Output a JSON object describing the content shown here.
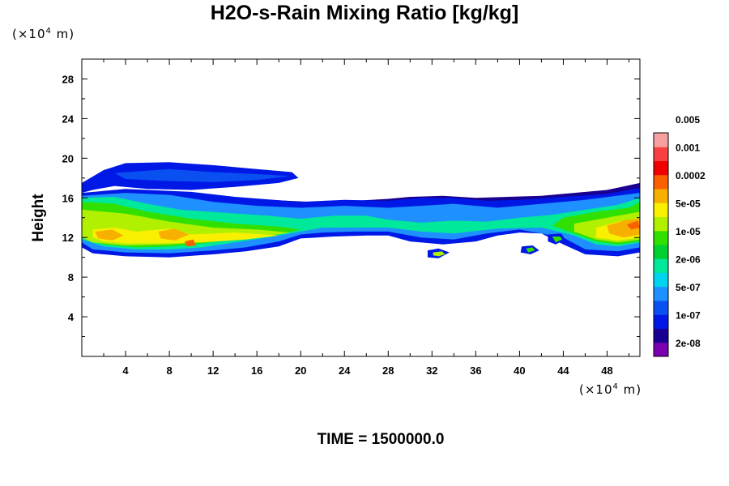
{
  "chart_data": {
    "type": "heatmap",
    "title": "H2O-s-Rain Mixing Ratio [kg/kg]",
    "ylabel": "Height",
    "x_unit_prefix": "(×10",
    "x_unit_exp": "4",
    "x_unit_suffix": " m)",
    "y_unit_prefix": "(×10",
    "y_unit_exp": "4",
    "y_unit_suffix": " m)",
    "xlim": [
      0,
      51
    ],
    "ylim": [
      0,
      30
    ],
    "x_ticks": [
      4,
      8,
      12,
      16,
      20,
      24,
      28,
      32,
      36,
      40,
      44,
      48
    ],
    "y_ticks": [
      4,
      8,
      12,
      16,
      20,
      24,
      28
    ],
    "footer": "TIME = 1500000.0",
    "colorbar": {
      "colors": [
        "#7a00b0",
        "#1a0090",
        "#0018e6",
        "#0a50f0",
        "#1e90ff",
        "#00d4ee",
        "#00e89a",
        "#00d030",
        "#32e000",
        "#b0f000",
        "#f8f000",
        "#f8b000",
        "#f86000",
        "#f00000",
        "#f84040",
        "#f8a0a0"
      ],
      "labels": [
        "2e-08",
        "1e-07",
        "5e-07",
        "2e-06",
        "1e-05",
        "5e-05",
        "0.0002",
        "0.001",
        "0.005"
      ]
    },
    "regions": [
      {
        "level": 2,
        "points": [
          [
            0,
            17.5
          ],
          [
            2,
            18.8
          ],
          [
            4,
            19.5
          ],
          [
            8,
            19.6
          ],
          [
            12,
            19.3
          ],
          [
            16,
            18.9
          ],
          [
            19.2,
            18.6
          ],
          [
            19.8,
            18.0
          ],
          [
            18,
            17.5
          ],
          [
            14,
            17.1
          ],
          [
            10,
            16.8
          ],
          [
            6,
            16.9
          ],
          [
            3,
            17.2
          ],
          [
            1,
            16.8
          ],
          [
            0,
            16.5
          ]
        ]
      },
      {
        "level": 3,
        "points": [
          [
            3,
            18.5
          ],
          [
            8,
            18.9
          ],
          [
            12,
            18.6
          ],
          [
            16,
            18.4
          ],
          [
            19,
            18.2
          ],
          [
            16,
            17.8
          ],
          [
            12,
            17.6
          ],
          [
            8,
            17.7
          ],
          [
            4,
            17.9
          ]
        ]
      },
      {
        "level": 1,
        "points": [
          [
            9,
            16.5
          ],
          [
            13,
            16.0
          ],
          [
            17,
            15.8
          ],
          [
            21,
            15.6
          ],
          [
            25,
            15.7
          ],
          [
            28,
            15.9
          ],
          [
            30,
            16.1
          ],
          [
            33,
            16.2
          ],
          [
            36,
            16.0
          ],
          [
            39,
            16.1
          ],
          [
            42,
            16.2
          ],
          [
            45,
            16.5
          ],
          [
            48,
            16.8
          ],
          [
            51,
            17.5
          ],
          [
            51,
            15.5
          ],
          [
            48,
            15.2
          ],
          [
            44,
            15.0
          ],
          [
            40,
            14.5
          ],
          [
            36,
            14.7
          ],
          [
            32,
            14.5
          ],
          [
            28,
            14.8
          ],
          [
            24,
            15.2
          ],
          [
            20,
            15.2
          ],
          [
            16,
            15.4
          ],
          [
            12,
            15.7
          ]
        ]
      },
      {
        "level": 2,
        "points": [
          [
            0,
            16.5
          ],
          [
            4,
            16.9
          ],
          [
            10,
            16.6
          ],
          [
            14,
            16.1
          ],
          [
            20,
            15.6
          ],
          [
            24,
            15.8
          ],
          [
            28,
            15.7
          ],
          [
            31,
            16.0
          ],
          [
            34,
            16.0
          ],
          [
            37,
            15.7
          ],
          [
            40,
            15.8
          ],
          [
            44,
            16.1
          ],
          [
            48,
            16.4
          ],
          [
            51,
            17.0
          ],
          [
            51,
            10.5
          ],
          [
            49,
            10.1
          ],
          [
            46,
            10.3
          ],
          [
            44,
            11.3
          ],
          [
            42,
            12.4
          ],
          [
            40,
            12.5
          ],
          [
            38,
            12.2
          ],
          [
            36,
            11.6
          ],
          [
            33,
            11.3
          ],
          [
            30,
            11.6
          ],
          [
            28,
            12.2
          ],
          [
            26,
            12.2
          ],
          [
            23,
            12.1
          ],
          [
            20,
            11.9
          ],
          [
            18,
            11.1
          ],
          [
            15,
            10.6
          ],
          [
            12,
            10.3
          ],
          [
            8,
            10.0
          ],
          [
            4,
            10.1
          ],
          [
            1,
            10.4
          ],
          [
            0,
            11.0
          ]
        ]
      },
      {
        "level": 4,
        "points": [
          [
            0,
            16.2
          ],
          [
            4,
            16.5
          ],
          [
            8,
            16.3
          ],
          [
            12,
            15.6
          ],
          [
            16,
            15.2
          ],
          [
            20,
            15.0
          ],
          [
            24,
            15.2
          ],
          [
            28,
            15.0
          ],
          [
            31,
            15.2
          ],
          [
            34,
            15.4
          ],
          [
            38,
            15.0
          ],
          [
            42,
            15.4
          ],
          [
            46,
            15.8
          ],
          [
            51,
            16.5
          ],
          [
            51,
            11.0
          ],
          [
            49,
            10.6
          ],
          [
            46,
            10.8
          ],
          [
            44,
            12.0
          ],
          [
            40,
            12.8
          ],
          [
            37,
            12.4
          ],
          [
            34,
            11.8
          ],
          [
            31,
            12.0
          ],
          [
            28,
            12.6
          ],
          [
            25,
            12.6
          ],
          [
            22,
            12.5
          ],
          [
            20,
            12.3
          ],
          [
            18,
            11.6
          ],
          [
            15,
            11.0
          ],
          [
            12,
            10.7
          ],
          [
            8,
            10.4
          ],
          [
            4,
            10.5
          ],
          [
            1,
            10.8
          ],
          [
            0,
            11.5
          ]
        ]
      },
      {
        "level": 6,
        "points": [
          [
            0,
            16.0
          ],
          [
            3,
            16.1
          ],
          [
            6,
            15.4
          ],
          [
            9,
            14.8
          ],
          [
            13,
            14.5
          ],
          [
            17,
            14.2
          ],
          [
            20,
            13.9
          ],
          [
            23,
            14.2
          ],
          [
            26,
            14.2
          ],
          [
            28,
            13.8
          ],
          [
            31,
            13.5
          ],
          [
            34,
            13.7
          ],
          [
            37,
            13.6
          ],
          [
            40,
            14.0
          ],
          [
            43,
            14.3
          ],
          [
            46,
            14.8
          ],
          [
            49,
            15.3
          ],
          [
            51,
            16.0
          ],
          [
            51,
            11.5
          ],
          [
            49,
            11.1
          ],
          [
            47,
            11.3
          ],
          [
            45,
            12.2
          ],
          [
            42,
            13.0
          ],
          [
            38,
            12.9
          ],
          [
            34,
            12.4
          ],
          [
            31,
            12.6
          ],
          [
            28,
            13.0
          ],
          [
            25,
            13.0
          ],
          [
            22,
            13.0
          ],
          [
            20,
            12.6
          ],
          [
            17,
            12.0
          ],
          [
            14,
            11.5
          ],
          [
            11,
            11.0
          ],
          [
            8,
            10.8
          ],
          [
            5,
            10.8
          ],
          [
            2,
            11.1
          ],
          [
            0,
            11.8
          ]
        ]
      },
      {
        "level": 8,
        "points": [
          [
            0,
            15.6
          ],
          [
            3,
            15.4
          ],
          [
            6,
            14.6
          ],
          [
            10,
            13.9
          ],
          [
            14,
            13.4
          ],
          [
            18,
            13.1
          ],
          [
            20,
            12.8
          ],
          [
            17,
            12.1
          ],
          [
            14,
            11.8
          ],
          [
            11,
            11.4
          ],
          [
            8,
            11.1
          ],
          [
            5,
            11.0
          ],
          [
            2,
            11.3
          ],
          [
            0,
            12.0
          ]
        ]
      },
      {
        "level": 8,
        "points": [
          [
            44,
            14.0
          ],
          [
            47,
            14.6
          ],
          [
            50,
            15.0
          ],
          [
            51,
            15.6
          ],
          [
            51,
            11.6
          ],
          [
            49,
            11.3
          ],
          [
            47,
            11.6
          ],
          [
            45,
            12.4
          ],
          [
            43,
            13.2
          ]
        ]
      },
      {
        "level": 9,
        "points": [
          [
            0,
            14.8
          ],
          [
            4,
            14.4
          ],
          [
            8,
            13.6
          ],
          [
            12,
            13.0
          ],
          [
            16,
            12.8
          ],
          [
            19,
            12.5
          ],
          [
            16,
            12.0
          ],
          [
            12,
            11.6
          ],
          [
            8,
            11.3
          ],
          [
            4,
            11.2
          ],
          [
            1,
            11.5
          ],
          [
            0,
            12.0
          ]
        ]
      },
      {
        "level": 9,
        "points": [
          [
            45,
            13.4
          ],
          [
            48,
            14.0
          ],
          [
            51,
            14.6
          ],
          [
            51,
            11.8
          ],
          [
            49,
            11.5
          ],
          [
            47,
            11.8
          ],
          [
            45,
            12.6
          ]
        ]
      },
      {
        "level": 10,
        "points": [
          [
            1,
            12.8
          ],
          [
            3,
            13.0
          ],
          [
            5,
            12.6
          ],
          [
            8,
            12.9
          ],
          [
            10,
            12.3
          ],
          [
            14,
            12.5
          ],
          [
            18,
            12.2
          ],
          [
            15,
            11.8
          ],
          [
            11,
            11.5
          ],
          [
            7,
            11.4
          ],
          [
            4,
            11.4
          ],
          [
            2,
            11.6
          ],
          [
            1,
            12.0
          ]
        ]
      },
      {
        "level": 10,
        "points": [
          [
            47,
            13.0
          ],
          [
            49,
            13.6
          ],
          [
            51,
            14.0
          ],
          [
            51,
            12.0
          ],
          [
            49,
            11.7
          ],
          [
            47,
            12.0
          ]
        ]
      },
      {
        "level": 11,
        "points": [
          [
            1.2,
            12.6
          ],
          [
            2.8,
            12.8
          ],
          [
            3.8,
            12.2
          ],
          [
            2.8,
            11.7
          ],
          [
            1.5,
            11.9
          ]
        ]
      },
      {
        "level": 11,
        "points": [
          [
            7,
            12.6
          ],
          [
            8.5,
            12.9
          ],
          [
            9.8,
            12.3
          ],
          [
            8.5,
            11.7
          ],
          [
            7.2,
            11.9
          ]
        ]
      },
      {
        "level": 11,
        "points": [
          [
            48,
            13.2
          ],
          [
            49.8,
            13.8
          ],
          [
            51,
            13.9
          ],
          [
            51,
            12.3
          ],
          [
            49.5,
            12.0
          ],
          [
            48.2,
            12.4
          ]
        ]
      },
      {
        "level": 12,
        "points": [
          [
            9.4,
            11.6
          ],
          [
            10.2,
            11.8
          ],
          [
            10.4,
            11.2
          ],
          [
            9.6,
            11.1
          ]
        ]
      },
      {
        "level": 12,
        "points": [
          [
            49.8,
            13.3
          ],
          [
            50.8,
            13.7
          ],
          [
            51,
            13.0
          ],
          [
            50.2,
            12.8
          ]
        ]
      },
      {
        "level": 2,
        "points": [
          [
            31.6,
            10.7
          ],
          [
            32.6,
            10.9
          ],
          [
            33.6,
            10.5
          ],
          [
            32.6,
            9.9
          ],
          [
            31.6,
            10.0
          ]
        ]
      },
      {
        "level": 9,
        "points": [
          [
            32.1,
            10.5
          ],
          [
            32.9,
            10.6
          ],
          [
            33.2,
            10.3
          ],
          [
            32.6,
            10.1
          ],
          [
            32.1,
            10.2
          ]
        ]
      },
      {
        "level": 2,
        "points": [
          [
            40.2,
            11.1
          ],
          [
            41.2,
            11.2
          ],
          [
            41.8,
            10.7
          ],
          [
            41.0,
            10.3
          ],
          [
            40.1,
            10.5
          ]
        ]
      },
      {
        "level": 8,
        "points": [
          [
            40.6,
            10.9
          ],
          [
            41.2,
            11.0
          ],
          [
            41.4,
            10.7
          ],
          [
            40.8,
            10.5
          ]
        ]
      },
      {
        "level": 2,
        "points": [
          [
            42.6,
            12.3
          ],
          [
            43.8,
            12.4
          ],
          [
            44.2,
            11.8
          ],
          [
            43.3,
            11.3
          ],
          [
            42.6,
            11.6
          ]
        ]
      },
      {
        "level": 8,
        "points": [
          [
            43.0,
            12.1
          ],
          [
            43.7,
            12.1
          ],
          [
            43.9,
            11.8
          ],
          [
            43.3,
            11.5
          ]
        ]
      }
    ]
  }
}
